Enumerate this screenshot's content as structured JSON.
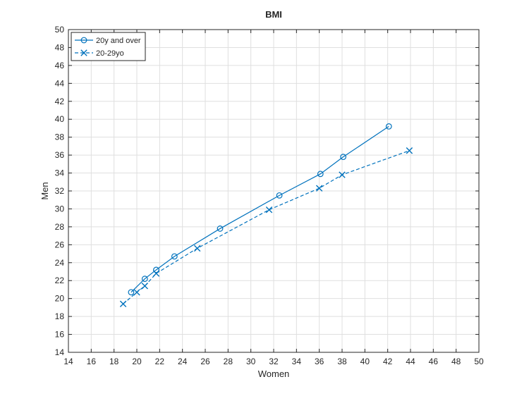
{
  "chart_data": {
    "type": "line",
    "title": "BMI",
    "xlabel": "Women",
    "ylabel": "Men",
    "xlim": [
      14,
      50
    ],
    "ylim": [
      14,
      50
    ],
    "xticks": [
      14,
      16,
      18,
      20,
      22,
      24,
      26,
      28,
      30,
      32,
      34,
      36,
      38,
      40,
      42,
      44,
      46,
      48,
      50
    ],
    "yticks": [
      14,
      16,
      18,
      20,
      22,
      24,
      26,
      28,
      30,
      32,
      34,
      36,
      38,
      40,
      42,
      44,
      46,
      48,
      50
    ],
    "grid": true,
    "legend_position": "top-left",
    "series": [
      {
        "name": "20y and over",
        "color": "#0072BD",
        "line_style": "solid",
        "marker": "circle",
        "x": [
          19.5,
          20.7,
          21.7,
          23.3,
          27.3,
          32.5,
          36.1,
          38.1,
          42.1
        ],
        "y": [
          20.7,
          22.2,
          23.2,
          24.7,
          27.8,
          31.5,
          33.9,
          35.8,
          39.2
        ]
      },
      {
        "name": "20-29yo",
        "color": "#0072BD",
        "line_style": "dashed",
        "marker": "x",
        "x": [
          18.8,
          20.0,
          20.7,
          21.7,
          25.3,
          31.6,
          36.0,
          38.0,
          43.9
        ],
        "y": [
          19.4,
          20.7,
          21.4,
          22.8,
          25.6,
          29.9,
          32.3,
          33.8,
          36.5
        ]
      }
    ]
  }
}
